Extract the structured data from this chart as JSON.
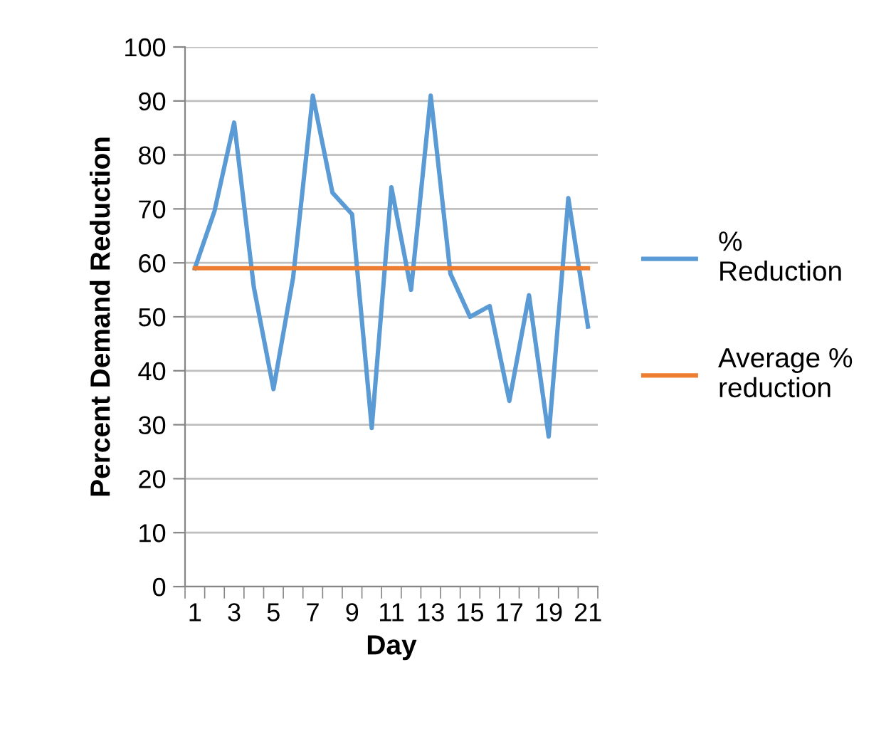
{
  "chart_data": {
    "type": "line",
    "xlabel": "Day",
    "ylabel": "Percent Demand Reduction",
    "categories": [
      "1",
      null,
      "3",
      null,
      "5",
      null,
      "7",
      null,
      "9",
      null,
      "11",
      null,
      "13",
      null,
      "15",
      null,
      "17",
      null,
      "19",
      null,
      "21"
    ],
    "series": [
      {
        "name": "% Reduction",
        "color": "#5b9bd5",
        "values": [
          59,
          69.6,
          86,
          55.5,
          36.6,
          57.3,
          91,
          73,
          69,
          29.4,
          74,
          55,
          91,
          58,
          50,
          52,
          34.4,
          54,
          27.8,
          72,
          48.2
        ]
      },
      {
        "name": "Average % reduction",
        "color": "#ed7d31",
        "values": [
          59,
          59,
          59,
          59,
          59,
          59,
          59,
          59,
          59,
          59,
          59,
          59,
          59,
          59,
          59,
          59,
          59,
          59,
          59,
          59,
          59
        ]
      }
    ],
    "ylim": [
      0,
      100
    ],
    "yticks": [
      0,
      10,
      20,
      30,
      40,
      50,
      60,
      70,
      80,
      90,
      100
    ],
    "grid": "y",
    "legend": "right",
    "marker": "none",
    "line_style": "solid"
  }
}
